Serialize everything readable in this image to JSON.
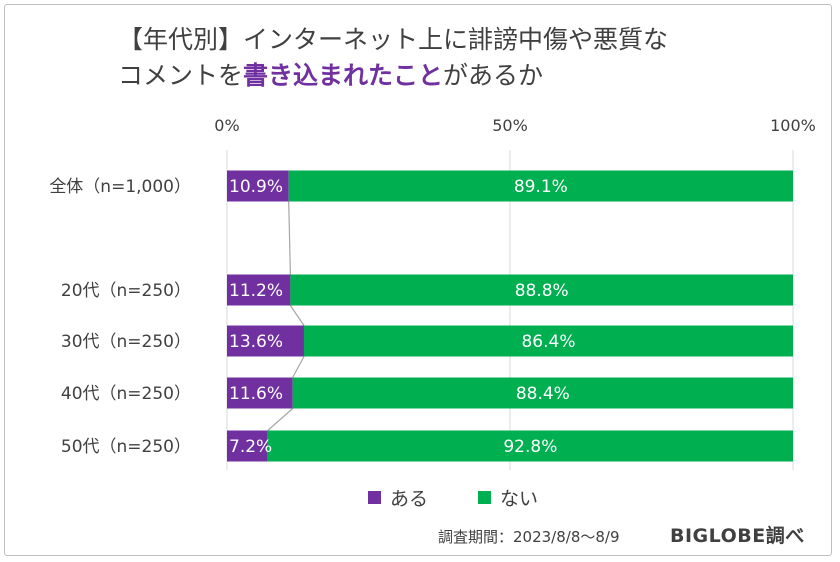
{
  "title": {
    "line1": "【年代別】インターネット上に誹謗中傷や悪質な",
    "line2_pre": "コメントを",
    "line2_em": "書き込まれたこと",
    "line2_post": "があるか"
  },
  "colors": {
    "aru": "#7030a0",
    "nai": "#00b050",
    "grid": "#d9d9d9",
    "connector": "#a6a6a6"
  },
  "chart_data": {
    "type": "bar",
    "orientation": "horizontal-stacked-100",
    "categories": [
      "全体（n=1,000）",
      "20代（n=250）",
      "30代（n=250）",
      "40代（n=250）",
      "50代（n=250）"
    ],
    "series": [
      {
        "name": "ある",
        "values": [
          10.9,
          11.2,
          13.6,
          11.6,
          7.2
        ],
        "labels": [
          "10.9%",
          "11.2%",
          "13.6%",
          "11.6%",
          "7.2%"
        ]
      },
      {
        "name": "ない",
        "values": [
          89.1,
          88.8,
          86.4,
          88.4,
          92.8
        ],
        "labels": [
          "89.1%",
          "88.8%",
          "86.4%",
          "88.4%",
          "92.8%"
        ]
      }
    ],
    "xlim": [
      0,
      100
    ],
    "xticks": [
      "0%",
      "50%",
      "100%"
    ],
    "xtick_values": [
      0,
      50,
      100
    ],
    "gridlines": true,
    "series_lines": true,
    "legend": "bottom"
  },
  "footer": {
    "survey_period": "調査期間：2023/8/8～8/9",
    "source": "BIGLOBE調べ"
  }
}
